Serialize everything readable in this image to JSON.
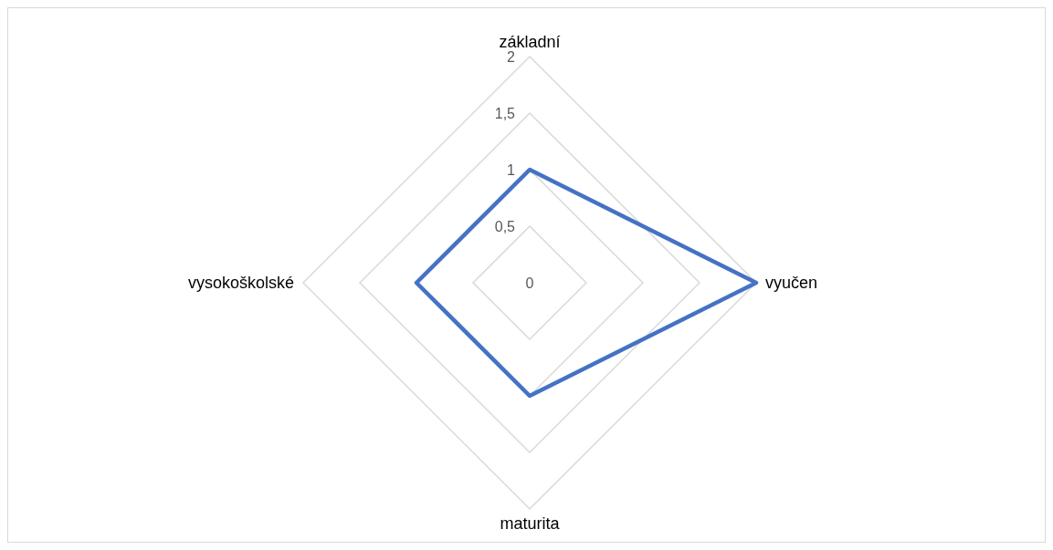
{
  "chart_data": {
    "type": "radar",
    "categories": [
      "základní",
      "vyučen",
      "maturita",
      "vysokoškolské"
    ],
    "series": [
      {
        "color": "#4472c4",
        "values": [
          1,
          2,
          1,
          1
        ]
      }
    ],
    "ylim": [
      0,
      2
    ],
    "yticks": [
      0,
      {
        "value": 0.5,
        "label": "0,5"
      },
      1,
      {
        "value": 1.5,
        "label": "1,5"
      },
      2
    ],
    "grid": true
  }
}
